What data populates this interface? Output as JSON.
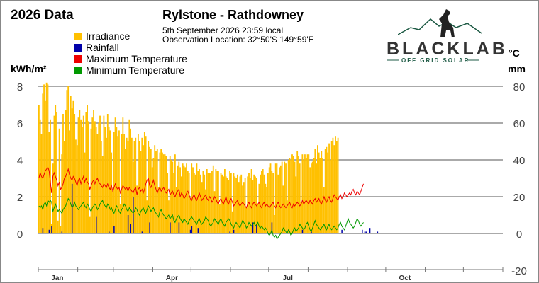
{
  "header": {
    "year_title": "2026 Data",
    "station": "Rylstone - Rathdowney",
    "observation_time": "5th September 2026  23:59 local",
    "observation_location": "Observation Location:   32°50'S 149°59'E"
  },
  "brand": {
    "name": "BLACKLAB",
    "tagline": "OFF GRID SOLAR"
  },
  "colors": {
    "irradiance": "#FFC000",
    "rainfall": "#0000AA",
    "max_temp": "#EE0000",
    "min_temp": "#009900",
    "grid": "#555555"
  },
  "chart_data": {
    "type": "bar",
    "legend": [
      "Irradiance",
      "Rainfall",
      "Maximum Temperature",
      "Minimum Temperature"
    ],
    "legend_position": "top-left",
    "left_unit": "kWh/m²",
    "right_units": [
      "°C",
      "mm"
    ],
    "x_axis": {
      "range_days": [
        0,
        365
      ],
      "month_ticks": [
        0,
        31,
        59,
        90,
        120,
        151,
        181,
        212,
        243,
        273,
        304,
        334,
        365
      ],
      "month_labels": [
        {
          "label": "Jan",
          "day": 15
        },
        {
          "label": "Apr",
          "day": 105
        },
        {
          "label": "Jul",
          "day": 196
        },
        {
          "label": "Oct",
          "day": 288
        }
      ]
    },
    "y_left": {
      "ticks": [
        0,
        2,
        4,
        6,
        8
      ],
      "range": [
        -1.5,
        8
      ]
    },
    "y_right": {
      "ticks": [
        -20,
        0,
        20,
        40,
        60,
        80
      ],
      "range": [
        -15,
        80
      ]
    },
    "grid": true,
    "series": [
      {
        "name": "Irradiance",
        "axis": "left",
        "kind": "bar",
        "values": [
          7.0,
          6.2,
          5.4,
          7.6,
          8.1,
          7.2,
          8.2,
          8.1,
          5.5,
          6.2,
          0.5,
          3.8,
          6.4,
          7.0,
          6.6,
          0.7,
          5.7,
          0.4,
          4.3,
          6.5,
          5.0,
          6.7,
          7.8,
          8.0,
          5.6,
          7.5,
          6.8,
          7.2,
          6.5,
          5.1,
          4.8,
          6.3,
          6.7,
          6.2,
          5.8,
          6.4,
          4.4,
          6.6,
          7.0,
          6.1,
          0.9,
          5.7,
          6.3,
          6.7,
          6.1,
          5.8,
          5.4,
          6.0,
          6.4,
          5.0,
          4.2,
          6.4,
          5.8,
          5.2,
          6.5,
          5.8,
          5.6,
          4.4,
          2.3,
          5.5,
          6.3,
          5.8,
          5.3,
          5.6,
          1.6,
          5.4,
          6.3,
          5.4,
          4.6,
          5.2,
          5.0,
          6.2,
          5.7,
          5.2,
          3.9,
          5.0,
          5.2,
          2.6,
          5.4,
          5.0,
          4.5,
          5.2,
          4.8,
          5.5,
          5.3,
          1.8,
          5.0,
          4.7,
          4.6,
          3.6,
          4.1,
          4.8,
          4.5,
          4.6,
          2.5,
          4.4,
          4.6,
          4.4,
          4.3,
          4.3,
          4.2,
          3.3,
          1.8,
          4.2,
          4.0,
          3.9,
          3.3,
          4.3,
          2.5,
          3.7,
          3.9,
          3.6,
          3.1,
          3.8,
          3.7,
          3.6,
          3.8,
          3.4,
          3.3,
          1.9,
          3.8,
          3.6,
          3.3,
          3.2,
          3.8,
          3.4,
          3.5,
          3.2,
          2.8,
          3.4,
          3.2,
          2.4,
          3.5,
          3.3,
          3.3,
          3.3,
          3.4,
          3.7,
          2.3,
          3.5,
          3.4,
          3.4,
          1.6,
          3.3,
          3.2,
          3.1,
          3.5,
          3.1,
          3.0,
          2.9,
          3.4,
          3.3,
          1.2,
          3.3,
          3.1,
          3.0,
          3.2,
          2.8,
          3.1,
          3.2,
          2.6,
          2.8,
          3.0,
          1.4,
          3.1,
          3.3,
          3.0,
          3.5,
          2.9,
          3.2,
          3.1,
          3.0,
          1.6,
          2.7,
          3.2,
          3.4,
          3.5,
          3.2,
          2.7,
          2.5,
          3.3,
          3.6,
          3.8,
          3.4,
          3.3,
          1.0,
          3.8,
          3.8,
          3.2,
          3.6,
          3.7,
          3.9,
          2.6,
          3.9,
          3.8,
          1.8,
          4.0,
          4.1,
          4.0,
          4.3,
          4.2,
          3.9,
          3.1,
          4.5,
          4.2,
          3.8,
          1.7,
          4.3,
          4.0,
          4.3,
          4.1,
          4.3,
          4.3,
          3.6,
          3.8,
          3.9,
          4.1,
          4.6,
          3.8,
          4.8,
          4.4,
          4.1,
          4.5,
          4.1,
          2.5,
          4.6,
          4.7,
          4.4,
          4.9,
          4.0,
          5.0,
          5.2,
          4.8,
          5.3,
          5.0,
          5.2
        ]
      },
      {
        "name": "Rainfall",
        "axis": "right",
        "kind": "bar",
        "values": [
          0,
          0,
          0,
          3,
          0,
          0,
          0,
          0,
          2,
          0,
          4,
          0,
          0,
          0,
          0,
          0,
          0,
          0,
          1,
          0,
          0,
          0,
          0,
          0,
          0,
          0,
          27,
          0,
          0,
          0,
          0,
          0,
          0,
          0,
          0,
          0,
          0,
          0,
          0,
          0,
          0,
          0,
          0,
          0,
          0,
          9,
          0,
          0,
          0,
          0,
          0,
          0,
          0,
          0,
          0,
          1,
          0,
          0,
          0,
          4,
          0,
          0,
          0,
          0,
          0,
          0,
          0,
          0,
          0,
          0,
          10,
          0,
          5,
          0,
          20,
          0,
          0,
          0,
          0,
          0,
          0,
          1,
          0,
          0,
          0,
          0,
          0,
          6,
          0,
          0,
          0,
          0,
          0,
          0,
          0,
          0,
          0,
          0,
          0,
          0,
          0,
          0,
          0,
          6,
          0,
          0,
          0,
          0,
          0,
          0,
          6,
          0,
          0,
          0,
          0,
          0,
          0,
          0,
          0,
          2,
          4,
          0,
          0,
          0,
          0,
          3,
          0,
          0,
          0,
          0,
          0,
          0,
          0,
          0,
          0,
          0,
          0,
          0,
          0,
          0,
          0,
          0,
          0,
          0,
          0,
          0,
          0,
          0,
          0,
          0,
          1,
          0,
          0,
          2,
          0,
          0,
          0,
          0,
          0,
          0,
          0,
          0,
          0,
          0,
          0,
          0,
          0,
          0,
          6,
          0,
          0,
          5,
          0,
          0,
          0,
          0,
          0,
          0,
          0,
          0,
          0,
          0,
          0,
          6,
          0,
          0,
          0,
          0,
          0,
          0,
          0,
          0,
          0,
          0,
          0,
          0,
          0,
          0,
          0,
          0,
          0,
          0,
          0,
          0,
          0,
          0,
          0,
          2,
          0,
          0,
          0,
          0,
          0,
          0,
          1,
          0,
          0,
          0,
          0,
          0,
          0,
          0,
          0,
          0,
          0,
          0,
          0,
          0,
          0,
          0,
          0,
          0,
          0,
          0,
          0,
          0,
          0,
          0,
          2,
          0,
          0,
          0,
          0,
          0,
          0,
          0,
          0,
          0,
          0,
          0,
          0,
          0,
          0,
          0,
          2,
          0,
          1,
          1,
          0,
          0,
          3,
          0,
          0,
          0,
          0,
          0,
          1,
          0,
          0,
          0,
          0,
          0,
          0,
          0,
          0,
          0,
          0,
          0,
          0,
          0
        ]
      },
      {
        "name": "Maximum Temperature",
        "axis": "right",
        "kind": "line",
        "values": [
          30,
          33,
          31,
          30,
          32,
          34,
          35,
          36,
          34,
          28,
          22,
          31,
          33,
          31,
          29,
          26,
          28,
          24,
          25,
          27,
          30,
          31,
          33,
          35,
          32,
          30,
          29,
          31,
          30,
          28,
          26,
          29,
          30,
          27,
          29,
          31,
          28,
          30,
          28,
          27,
          24,
          26,
          28,
          29,
          27,
          29,
          30,
          28,
          27,
          26,
          25,
          27,
          26,
          25,
          27,
          25,
          24,
          26,
          23,
          25,
          27,
          25,
          24,
          25,
          22,
          24,
          26,
          25,
          24,
          25,
          23,
          25,
          24,
          23,
          22,
          24,
          25,
          21,
          24,
          25,
          23,
          24,
          22,
          24,
          27,
          29,
          30,
          26,
          25,
          27,
          29,
          26,
          24,
          22,
          24,
          25,
          23,
          24,
          25,
          23,
          22,
          23,
          24,
          21,
          22,
          23,
          21,
          20,
          22,
          23,
          24,
          20,
          22,
          21,
          19,
          20,
          22,
          23,
          21,
          19,
          18,
          20,
          21,
          19,
          18,
          20,
          22,
          20,
          18,
          19,
          20,
          21,
          19,
          18,
          20,
          19,
          17,
          18,
          20,
          19,
          17,
          16,
          18,
          19,
          17,
          16,
          18,
          20,
          17,
          16,
          18,
          19,
          17,
          15,
          16,
          17,
          18,
          16,
          15,
          16,
          17,
          16,
          15,
          14,
          16,
          17,
          15,
          14,
          16,
          17,
          16,
          15,
          16,
          17,
          15,
          14,
          16,
          17,
          15,
          16,
          15,
          14,
          15,
          16,
          17,
          15,
          14,
          16,
          17,
          15,
          14,
          15,
          16,
          15,
          14,
          15,
          16,
          17,
          15,
          14,
          16,
          15,
          16,
          17,
          16,
          15,
          16,
          18,
          16,
          17,
          18,
          17,
          16,
          18,
          17,
          16,
          18,
          19,
          17,
          18,
          19,
          17,
          16,
          18,
          20,
          18,
          17,
          19,
          20,
          18,
          17,
          19,
          21,
          20,
          19,
          18,
          20,
          21,
          19,
          20,
          22,
          21,
          20,
          21,
          22,
          21,
          23,
          24,
          22,
          21,
          23,
          22,
          21,
          23,
          25,
          27
        ]
      },
      {
        "name": "Minimum Temperature",
        "axis": "right",
        "kind": "line",
        "values": [
          15,
          14,
          15,
          13,
          16,
          17,
          15,
          18,
          17,
          18,
          17,
          12,
          14,
          16,
          14,
          12,
          13,
          12,
          11,
          13,
          14,
          15,
          17,
          19,
          18,
          16,
          14,
          15,
          17,
          15,
          14,
          13,
          14,
          15,
          16,
          17,
          15,
          14,
          16,
          15,
          13,
          12,
          14,
          15,
          16,
          15,
          13,
          14,
          16,
          17,
          18,
          16,
          15,
          14,
          16,
          15,
          13,
          14,
          12,
          11,
          13,
          15,
          14,
          12,
          11,
          13,
          14,
          16,
          15,
          13,
          12,
          14,
          13,
          12,
          11,
          12,
          14,
          13,
          11,
          10,
          12,
          13,
          14,
          12,
          11,
          13,
          15,
          14,
          12,
          13,
          14,
          12,
          11,
          10,
          9,
          12,
          13,
          11,
          10,
          9,
          8,
          9,
          10,
          8,
          9,
          10,
          7,
          6,
          8,
          9,
          10,
          8,
          7,
          6,
          8,
          7,
          6,
          5,
          7,
          8,
          9,
          8,
          7,
          6,
          5,
          7,
          8,
          6,
          5,
          6,
          7,
          9,
          8,
          7,
          5,
          4,
          5,
          6,
          8,
          7,
          6,
          5,
          7,
          8,
          6,
          5,
          4,
          6,
          7,
          8,
          7,
          5,
          4,
          3,
          5,
          6,
          5,
          4,
          3,
          5,
          7,
          6,
          5,
          3,
          4,
          6,
          5,
          4,
          5,
          6,
          4,
          5,
          6,
          4,
          3,
          4,
          3,
          2,
          3,
          2,
          0,
          -1,
          0,
          2,
          -1,
          -2,
          -1,
          -3,
          -2,
          -1,
          0,
          1,
          3,
          2,
          1,
          0,
          2,
          1,
          -1,
          0,
          2,
          3,
          1,
          2,
          3,
          5,
          4,
          3,
          2,
          3,
          5,
          6,
          4,
          2,
          1,
          3,
          5,
          7,
          5,
          4,
          3,
          2,
          3,
          4,
          5,
          3,
          2,
          4,
          5,
          3,
          2,
          3,
          4,
          3,
          2,
          3,
          5,
          6,
          4,
          3,
          2,
          4,
          6,
          8,
          6,
          5,
          4,
          3,
          4,
          6,
          8,
          7,
          5,
          4,
          5,
          6
        ]
      }
    ]
  }
}
